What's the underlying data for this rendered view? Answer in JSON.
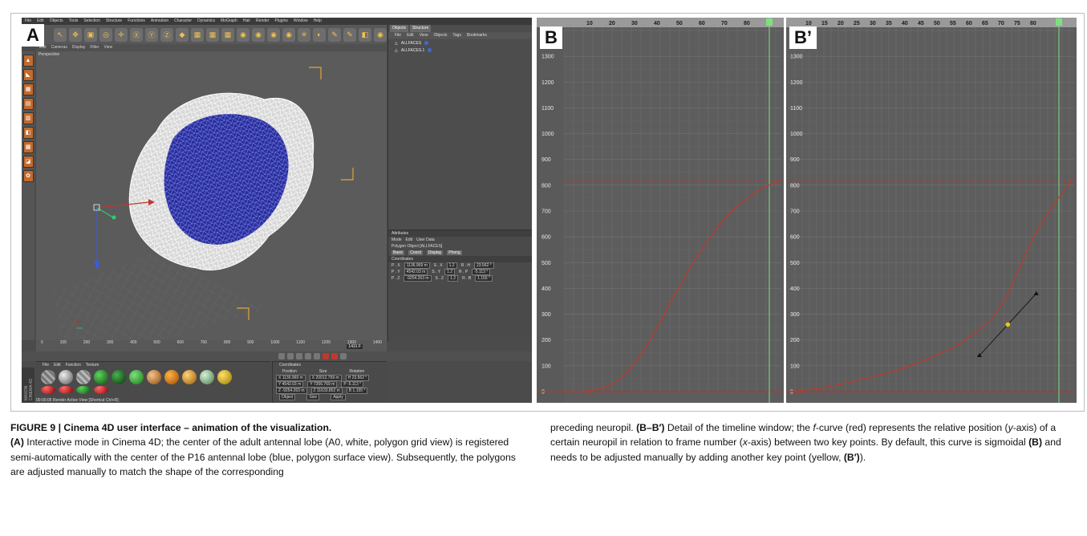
{
  "panel_labels": {
    "a": "A",
    "b": "B",
    "bp": "B’"
  },
  "cinema4d": {
    "menu": [
      "File",
      "Edit",
      "Objects",
      "Tools",
      "Selection",
      "Structure",
      "Functions",
      "Animation",
      "Character",
      "Dynamics",
      "MoGraph",
      "Hair",
      "Render",
      "Plugins",
      "Window",
      "Help"
    ],
    "toolbar_icons": [
      "↖",
      "✥",
      "▣",
      "◎",
      "✛",
      "Ⓧ",
      "Ⓨ",
      "Ⓩ",
      "◆",
      "▦",
      "▦",
      "▦",
      "◉",
      "◉",
      "◉",
      "◉",
      "✳",
      "◐",
      "✎",
      "✎",
      "◧",
      "◉"
    ],
    "viewport_menu": [
      "Edit",
      "Cameras",
      "Display",
      "Filter",
      "View"
    ],
    "viewport_label": "Perspective",
    "objects_tabs": [
      "Objects",
      "Structure"
    ],
    "objects_menu": [
      "File",
      "Edit",
      "View",
      "Objects",
      "Tags",
      "Bookmarks"
    ],
    "objects": [
      "ALLFACES",
      "ALLFACES.1"
    ],
    "attributes": {
      "title": "Attributes",
      "menu": [
        "Mode",
        "Edit",
        "User Data"
      ],
      "object": "Polygon Object [ALLFACES]",
      "tabs": [
        "Basic",
        "Coord",
        "Display",
        "Phong"
      ],
      "section": "Coordinates",
      "rows": [
        {
          "a": "P . X",
          "av": "1136.969 m",
          "b": "S . X",
          "bv": "1.2",
          "c": "R . H",
          "cv": "23.562 °"
        },
        {
          "a": "P . Y",
          "av": "4542.03 m",
          "b": "S . Y",
          "bv": "1.2",
          "c": "R . P",
          "cv": "-5.113 °"
        },
        {
          "a": "P . Z",
          "av": "-9254.263 m",
          "b": "S . Z",
          "bv": "1.2",
          "c": "R . B",
          "cv": "1.155 °"
        }
      ]
    },
    "timeline_ticks": [
      "0",
      "100",
      "200",
      "300",
      "400",
      "500",
      "600",
      "700",
      "800",
      "900",
      "1000",
      "1100",
      "1200",
      "1300",
      "1400"
    ],
    "timeline_frame": "1431 F",
    "materials": {
      "title": "Materials",
      "menu": [
        "File",
        "Edit",
        "Function",
        "Texture"
      ]
    },
    "coordinates": {
      "title": "Coordinates",
      "headers": [
        "Position",
        "Size",
        "Rotation"
      ],
      "rows": [
        [
          "X  1136.969 m",
          "X  20012.759 m",
          "H  23.562 °"
        ],
        [
          "Y  4542.03 m",
          "Y  7356.769 m",
          "P  -5.113 °"
        ],
        [
          "Z  -9254.263 m",
          "Z  11633.852 m",
          "B  1.155 °"
        ]
      ],
      "buttons": [
        "Object",
        "Size",
        "Apply"
      ]
    },
    "status": "00:00:05   Render Active View [Shortcut Ctrl+R]",
    "logo": "MAXON CINEMA 4D"
  },
  "chart_b": {
    "top_ticks": [
      "10",
      "20",
      "30",
      "40",
      "50",
      "60",
      "70",
      "80"
    ],
    "y_ticks": [
      "100",
      "200",
      "300",
      "400",
      "500",
      "600",
      "700",
      "800",
      "900",
      "1000",
      "1100",
      "1200",
      "1300"
    ],
    "zero": "0"
  },
  "chart_bp": {
    "top_ticks": [
      "10",
      "15",
      "20",
      "25",
      "30",
      "35",
      "40",
      "45",
      "50",
      "55",
      "60",
      "65",
      "70",
      "75",
      "80"
    ],
    "y_ticks": [
      "100",
      "200",
      "300",
      "400",
      "500",
      "600",
      "700",
      "800",
      "900",
      "1000",
      "1100",
      "1200",
      "1300"
    ],
    "zero": "0"
  },
  "chart_data": [
    {
      "type": "line",
      "panel": "B",
      "series": [
        {
          "x": [
            0,
            10,
            20,
            30,
            40,
            50,
            60,
            70,
            80
          ],
          "y": [
            0,
            5,
            45,
            170,
            360,
            540,
            680,
            770,
            820
          ],
          "color": "#c0392b"
        }
      ],
      "xlabel": "",
      "ylabel": "",
      "ylim": [
        0,
        1400
      ],
      "ref_line_y": 820,
      "grid": true
    },
    {
      "type": "line",
      "panel": "B’",
      "series": [
        {
          "x": [
            0,
            10,
            20,
            30,
            40,
            50,
            60,
            70,
            80
          ],
          "y": [
            0,
            15,
            45,
            80,
            130,
            200,
            330,
            620,
            820
          ],
          "color": "#c0392b"
        }
      ],
      "key_point": {
        "x": 62,
        "y": 260,
        "color": "#f1c40f"
      },
      "tangent_handles": [
        {
          "x": 54,
          "y": 140
        },
        {
          "x": 70,
          "y": 380
        }
      ],
      "xlabel": "",
      "ylabel": "",
      "ylim": [
        0,
        1400
      ],
      "ref_line_y": 820,
      "grid": true
    }
  ],
  "caption": {
    "title": "FIGURE 9 | Cinema 4D user interface – animation of the visualization.",
    "a_label": "(A)",
    "a_text": " Interactive mode in Cinema 4D; the center of the adult antennal lobe (A0, white, polygon grid view) is registered semi-automatically with the center of the P16 antennal lobe (blue, polygon surface view). Subsequently, the polygons are adjusted manually to match the shape of the corresponding preceding neuropil. ",
    "b_label": "(B–B′)",
    "b_text1": " Detail of the timeline window; the ",
    "f_italic": "f",
    "b_text2": "-curve (red) represents the relative position (",
    "y_italic": "y",
    "b_text3": "-axis) of a certain neuropil in relation to frame number (",
    "x_italic": "x",
    "b_text4": "-axis) between two key points. By default, this curve is sigmoidal ",
    "b_ref": "(B)",
    "b_text5": " and needs to be adjusted manually by adding another key point (yellow, ",
    "bp_ref": "(B′)",
    "b_text6": ")."
  }
}
